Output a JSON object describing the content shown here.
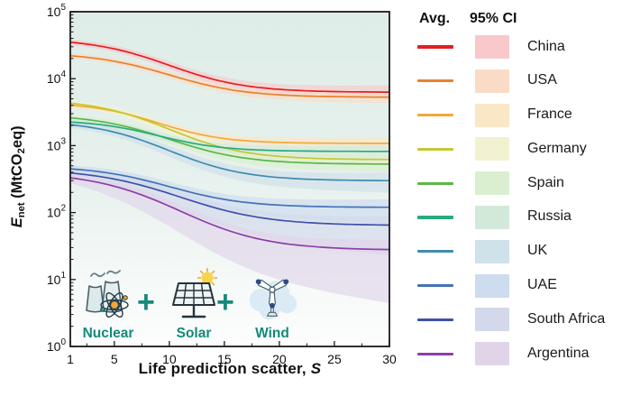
{
  "figure": {
    "axes": {
      "x_label_text": "Life prediction scatter, ",
      "x_label_italic": "S",
      "y_label_sym": "E",
      "y_label_sub": "net",
      "y_label_unit_pre": " (MtCO",
      "y_label_unit_sub": "2",
      "y_label_unit_post": "eq)"
    },
    "legend": {
      "header_avg": "Avg.",
      "header_ci": "95% CI"
    },
    "icons": {
      "plus": "+",
      "label_color": "#12897b",
      "items": [
        {
          "label": "Nuclear"
        },
        {
          "label": "Solar"
        },
        {
          "label": "Wind"
        }
      ]
    }
  },
  "chart_data": {
    "type": "line",
    "title": "",
    "xlabel": "Life prediction scatter, S",
    "ylabel": "E_net (MtCO2eq)",
    "x_axis": {
      "range": [
        1,
        30
      ],
      "major_ticks": [
        1,
        5,
        10,
        15,
        20,
        25,
        30
      ],
      "minor_ticks": [
        2.5,
        7.5,
        12.5,
        17.5,
        22.5,
        27.5
      ]
    },
    "y_axis": {
      "scale": "log10",
      "base_label": "10",
      "exponent_range": [
        0,
        5
      ],
      "major_tick_exponents": [
        0,
        1,
        2,
        3,
        4,
        5
      ]
    },
    "grid": false,
    "legend_position": "right",
    "plot_bg_gradient": [
      "#deede8",
      "#e7f1ed",
      "#f5f9f7",
      "#fdfdfd"
    ],
    "x_samples": [
      1,
      5,
      10,
      15,
      20,
      25,
      30
    ],
    "series": [
      {
        "name": "China",
        "avg_color": "#e41f23",
        "ci_color": "#f9c8cb",
        "start_value": 35000,
        "end_value": 6300,
        "sigmoid_mid": 10,
        "sigmoid_width": 3.5,
        "ci_log_up": [
          0.04,
          0.1
        ],
        "ci_log_down": [
          0.04,
          0.1
        ],
        "values": [
          35000,
          27900,
          15800,
          8900,
          6900,
          6400,
          6300
        ]
      },
      {
        "name": "USA",
        "avg_color": "#e5822f",
        "ci_color": "#fadcc6",
        "start_value": 22000,
        "end_value": 5300,
        "sigmoid_mid": 10,
        "sigmoid_width": 3.5,
        "ci_log_up": [
          0.04,
          0.09
        ],
        "ci_log_down": [
          0.04,
          0.09
        ],
        "values": [
          22000,
          18200,
          11400,
          7100,
          5700,
          5400,
          5300
        ]
      },
      {
        "name": "France",
        "avg_color": "#f3a93a",
        "ci_color": "#f9e7c6",
        "start_value": 4000,
        "end_value": 1080,
        "sigmoid_mid": 9,
        "sigmoid_width": 3.0,
        "ci_log_up": [
          0.04,
          0.09
        ],
        "ci_log_down": [
          0.04,
          0.09
        ],
        "values": [
          4000,
          3270,
          1940,
          1270,
          1120,
          1090,
          1080
        ]
      },
      {
        "name": "Germany",
        "avg_color": "#c3c832",
        "ci_color": "#f2f2d2",
        "start_value": 4300,
        "end_value": 620,
        "sigmoid_mid": 10,
        "sigmoid_width": 3.5,
        "ci_log_up": [
          0.05,
          0.1
        ],
        "ci_log_down": [
          0.05,
          0.12
        ],
        "values": [
          4300,
          3330,
          1750,
          920,
          690,
          630,
          620
        ]
      },
      {
        "name": "Spain",
        "avg_color": "#5bb648",
        "ci_color": "#d9efcf",
        "start_value": 2600,
        "end_value": 530,
        "sigmoid_mid": 10,
        "sigmoid_width": 3.5,
        "ci_log_up": [
          0.04,
          0.1
        ],
        "ci_log_down": [
          0.04,
          0.12
        ],
        "values": [
          2600,
          2100,
          1240,
          730,
          580,
          540,
          530
        ]
      },
      {
        "name": "Russia",
        "avg_color": "#2aaa7e",
        "ci_color": "#d2e9da",
        "start_value": 2250,
        "end_value": 820,
        "sigmoid_mid": 9,
        "sigmoid_width": 3.0,
        "ci_log_up": [
          0.04,
          0.09
        ],
        "ci_log_down": [
          0.04,
          0.1
        ],
        "values": [
          2250,
          1930,
          1290,
          930,
          840,
          820,
          820
        ]
      },
      {
        "name": "UK",
        "avg_color": "#3e8cb0",
        "ci_color": "#cfe1e9",
        "start_value": 2050,
        "end_value": 300,
        "sigmoid_mid": 10,
        "sigmoid_width": 3.5,
        "ci_log_up": [
          0.05,
          0.12
        ],
        "ci_log_down": [
          0.05,
          0.18
        ],
        "values": [
          2050,
          1590,
          840,
          445,
          335,
          305,
          300
        ]
      },
      {
        "name": "UAE",
        "avg_color": "#4472b8",
        "ci_color": "#cddcee",
        "start_value": 450,
        "end_value": 120,
        "sigmoid_mid": 10,
        "sigmoid_width": 3.5,
        "ci_log_up": [
          0.05,
          0.12
        ],
        "ci_log_down": [
          0.05,
          0.25
        ],
        "values": [
          450,
          380,
          245,
          158,
          129,
          122,
          120
        ]
      },
      {
        "name": "South Africa",
        "avg_color": "#3f51a8",
        "ci_color": "#d3d8eb",
        "start_value": 390,
        "end_value": 65,
        "sigmoid_mid": 11,
        "sigmoid_width": 4.0,
        "ci_log_up": [
          0.05,
          0.13
        ],
        "ci_log_down": [
          0.05,
          0.45
        ],
        "values": [
          390,
          317,
          192,
          108,
          77,
          68,
          65
        ]
      },
      {
        "name": "Argentina",
        "avg_color": "#8b3fa8",
        "ci_color": "#e1d4e9",
        "start_value": 330,
        "end_value": 28,
        "sigmoid_mid": 11,
        "sigmoid_width": 4.0,
        "ci_log_up": [
          0.06,
          0.15
        ],
        "ci_log_down": [
          0.08,
          0.8
        ],
        "values": [
          330,
          250,
          124,
          56,
          35,
          30,
          28
        ]
      }
    ]
  }
}
